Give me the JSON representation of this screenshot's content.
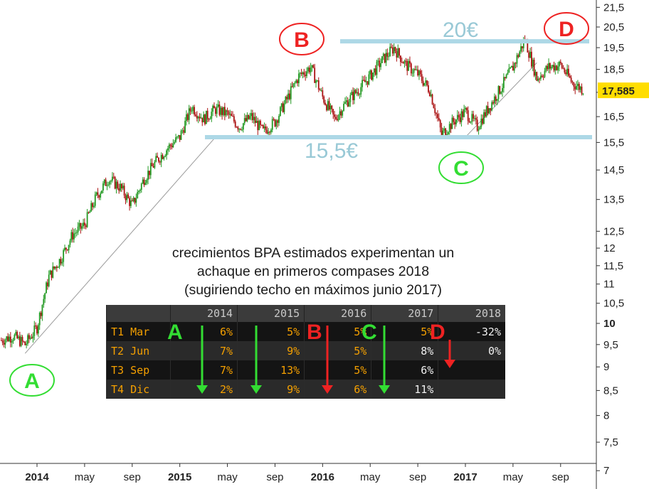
{
  "chart_data": {
    "type": "candlestick",
    "title": "",
    "xlabel": "",
    "ylabel": "",
    "y_scale": "log",
    "ylim": [
      7,
      21.5
    ],
    "y_ticks": [
      "21,5",
      "20,5",
      "19,5",
      "18,5",
      "17,5",
      "16,5",
      "15,5",
      "14,5",
      "13,5",
      "12,5",
      "12",
      "11,5",
      "11",
      "10,5",
      "10",
      "9,5",
      "9",
      "8,5",
      "8",
      "7,5",
      "7"
    ],
    "y_bold_tick": "10",
    "last_price_label": "17,585",
    "last_price": 17.585,
    "x_ticks": [
      "2014",
      "may",
      "sep",
      "2015",
      "may",
      "sep",
      "2016",
      "may",
      "sep",
      "2017",
      "may",
      "sep"
    ],
    "x_major_ticks": [
      "2014",
      "2015",
      "2016",
      "2017"
    ],
    "x_range": [
      "2013-09",
      "2017-11"
    ],
    "price_path_monthly": [
      [
        "2013-10",
        9.6
      ],
      [
        "2013-11",
        9.7
      ],
      [
        "2013-12",
        9.5
      ],
      [
        "2014-01",
        9.9
      ],
      [
        "2014-02",
        11.2
      ],
      [
        "2014-03",
        11.7
      ],
      [
        "2014-04",
        12.4
      ],
      [
        "2014-05",
        12.7
      ],
      [
        "2014-06",
        13.6
      ],
      [
        "2014-07",
        14.2
      ],
      [
        "2014-08",
        13.9
      ],
      [
        "2014-09",
        13.3
      ],
      [
        "2014-10",
        14.2
      ],
      [
        "2014-11",
        14.8
      ],
      [
        "2014-12",
        15.3
      ],
      [
        "2015-01",
        15.7
      ],
      [
        "2015-02",
        16.9
      ],
      [
        "2015-03",
        16.4
      ],
      [
        "2015-04",
        16.8
      ],
      [
        "2015-05",
        16.6
      ],
      [
        "2015-06",
        16.1
      ],
      [
        "2015-07",
        16.5
      ],
      [
        "2015-08",
        15.9
      ],
      [
        "2015-09",
        16.3
      ],
      [
        "2015-10",
        17.2
      ],
      [
        "2015-11",
        18.2
      ],
      [
        "2015-12",
        18.6
      ],
      [
        "2016-01",
        17.3
      ],
      [
        "2016-02",
        16.4
      ],
      [
        "2016-03",
        17.1
      ],
      [
        "2016-04",
        17.6
      ],
      [
        "2016-05",
        18.2
      ],
      [
        "2016-06",
        18.9
      ],
      [
        "2016-07",
        19.5
      ],
      [
        "2016-08",
        18.7
      ],
      [
        "2016-09",
        18.3
      ],
      [
        "2016-10",
        17.6
      ],
      [
        "2016-11",
        15.8
      ],
      [
        "2016-12",
        16.3
      ],
      [
        "2017-01",
        16.7
      ],
      [
        "2017-02",
        16.1
      ],
      [
        "2017-03",
        16.9
      ],
      [
        "2017-04",
        17.7
      ],
      [
        "2017-05",
        18.6
      ],
      [
        "2017-06",
        19.9
      ],
      [
        "2017-07",
        18.1
      ],
      [
        "2017-08",
        18.6
      ],
      [
        "2017-09",
        18.7
      ],
      [
        "2017-10",
        17.9
      ],
      [
        "2017-11",
        17.585
      ]
    ],
    "trendlines": [
      {
        "from": [
          "2013-12",
          9.3
        ],
        "to": [
          "2015-04",
          15.7
        ]
      },
      {
        "from": [
          "2017-01",
          15.7
        ],
        "to": [
          "2017-07",
          18.8
        ]
      }
    ],
    "levels": [
      {
        "value": 19.8,
        "label": "20€"
      },
      {
        "value": 15.7,
        "label": "15,5€"
      }
    ],
    "markers": [
      {
        "letter": "A",
        "color": "#33dd33"
      },
      {
        "letter": "B",
        "color": "#ee2222"
      },
      {
        "letter": "C",
        "color": "#33dd33"
      },
      {
        "letter": "D",
        "color": "#ee2222"
      }
    ]
  },
  "annotation": {
    "line1": "crecimientos BPA estimados experimentan un",
    "line2": "achaque en primeros compases 2018",
    "line3": "(sugiriendo techo en máximos junio 2017)"
  },
  "table": {
    "headers": [
      "",
      "2014",
      "2015",
      "2016",
      "2017",
      "2018"
    ],
    "rows": [
      {
        "label": "T1 Mar",
        "cells": [
          "6%",
          "5%",
          "5%",
          "5%",
          "-32%"
        ]
      },
      {
        "label": "T2 Jun",
        "cells": [
          "7%",
          "9%",
          "5%",
          "8%",
          "0%"
        ]
      },
      {
        "label": "T3 Sep",
        "cells": [
          "7%",
          "13%",
          "5%",
          "6%",
          ""
        ]
      },
      {
        "label": "T4 Dic",
        "cells": [
          "2%",
          "9%",
          "6%",
          "11%",
          ""
        ]
      }
    ],
    "letters": [
      {
        "letter": "A",
        "color": "#33dd33"
      },
      {
        "letter": "B",
        "color": "#ee2222"
      },
      {
        "letter": "C",
        "color": "#33dd33"
      },
      {
        "letter": "D",
        "color": "#ee2222"
      }
    ],
    "arrow_colors": [
      "#33dd33",
      "#33dd33",
      "#ee2222",
      "#33dd33",
      "#ee2222"
    ]
  },
  "colors": {
    "level_line": "#add8e6",
    "level_text": "#99c9d6",
    "bull": "#229922",
    "bear": "#aa1111",
    "price_box": "#ffdd00"
  }
}
